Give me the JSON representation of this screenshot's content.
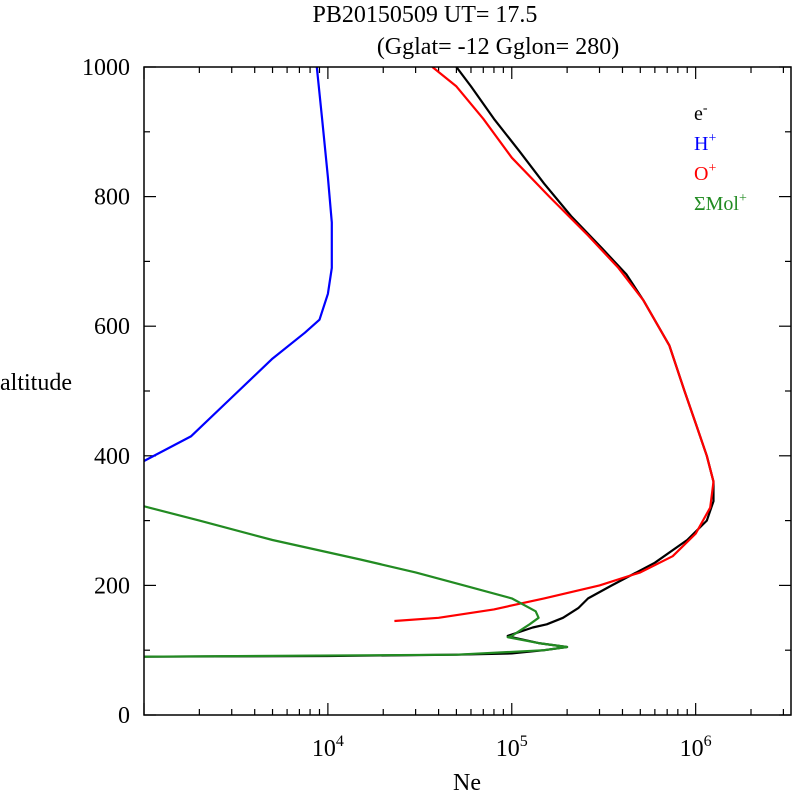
{
  "chart_data": {
    "type": "line",
    "title_line1": "PB20150509   UT=  17.5",
    "title_line2": "(Gglat= -12   Gglon=  280)",
    "xlabel": "Ne",
    "ylabel": "altitude",
    "x_scale": "log",
    "xlim": [
      1000,
      3300000
    ],
    "ylim": [
      0,
      1000
    ],
    "y_ticks": [
      "0",
      "200",
      "400",
      "600",
      "800",
      "1000"
    ],
    "x_tick_labels": [
      {
        "base": "10",
        "exp": "4"
      },
      {
        "base": "10",
        "exp": "5"
      },
      {
        "base": "10",
        "exp": "6"
      }
    ],
    "grid": false,
    "legend_placement": "top-right",
    "series": [
      {
        "name": "e-",
        "label_base": "e",
        "label_sup": "-",
        "color": "#000000",
        "points": [
          [
            1000,
            90
          ],
          [
            10000,
            91
          ],
          [
            50000,
            93
          ],
          [
            100000,
            95
          ],
          [
            150000,
            100
          ],
          [
            200000,
            105
          ],
          [
            140000,
            111
          ],
          [
            100000,
            120
          ],
          [
            95000,
            122
          ],
          [
            130000,
            135
          ],
          [
            155000,
            140
          ],
          [
            190000,
            150
          ],
          [
            230000,
            165
          ],
          [
            260000,
            180
          ],
          [
            350000,
            200
          ],
          [
            600000,
            235
          ],
          [
            900000,
            270
          ],
          [
            1150000,
            300
          ],
          [
            1250000,
            330
          ],
          [
            1250000,
            360
          ],
          [
            1150000,
            400
          ],
          [
            1000000,
            450
          ],
          [
            870000,
            500
          ],
          [
            720000,
            570
          ],
          [
            520000,
            640
          ],
          [
            420000,
            680
          ],
          [
            310000,
            720
          ],
          [
            210000,
            770
          ],
          [
            150000,
            820
          ],
          [
            110000,
            870
          ],
          [
            80000,
            920
          ],
          [
            60000,
            970
          ],
          [
            50000,
            1000
          ]
        ]
      },
      {
        "name": "H+",
        "label_base": "H",
        "label_sup": "+",
        "color": "#0000ff",
        "points": [
          [
            1000,
            392
          ],
          [
            1800,
            430
          ],
          [
            3000,
            490
          ],
          [
            5000,
            550
          ],
          [
            7500,
            590
          ],
          [
            9000,
            610
          ],
          [
            10000,
            650
          ],
          [
            10500,
            690
          ],
          [
            10500,
            760
          ],
          [
            10000,
            830
          ],
          [
            9300,
            920
          ],
          [
            8700,
            1000
          ]
        ]
      },
      {
        "name": "O+",
        "label_base": "O",
        "label_sup": "+",
        "color": "#ff0000",
        "points": [
          [
            23000,
            145
          ],
          [
            40000,
            150
          ],
          [
            80000,
            163
          ],
          [
            150000,
            180
          ],
          [
            300000,
            200
          ],
          [
            500000,
            220
          ],
          [
            750000,
            245
          ],
          [
            1000000,
            280
          ],
          [
            1200000,
            320
          ],
          [
            1250000,
            360
          ],
          [
            1150000,
            400
          ],
          [
            1000000,
            450
          ],
          [
            870000,
            500
          ],
          [
            720000,
            570
          ],
          [
            520000,
            640
          ],
          [
            380000,
            690
          ],
          [
            260000,
            740
          ],
          [
            160000,
            800
          ],
          [
            100000,
            860
          ],
          [
            70000,
            920
          ],
          [
            50000,
            970
          ],
          [
            37000,
            1000
          ]
        ]
      },
      {
        "name": "ΣMol+",
        "label_base": "ΣMol",
        "label_sup": "+",
        "color": "#228b22",
        "points": [
          [
            1000,
            322
          ],
          [
            2000,
            300
          ],
          [
            5000,
            270
          ],
          [
            15000,
            240
          ],
          [
            30000,
            220
          ],
          [
            55000,
            200
          ],
          [
            100000,
            180
          ],
          [
            135000,
            160
          ],
          [
            140000,
            150
          ],
          [
            125000,
            140
          ],
          [
            100000,
            122
          ],
          [
            95000,
            120
          ],
          [
            140000,
            111
          ],
          [
            200000,
            105
          ],
          [
            150000,
            100
          ],
          [
            50000,
            93
          ],
          [
            1000,
            90
          ]
        ]
      }
    ]
  }
}
